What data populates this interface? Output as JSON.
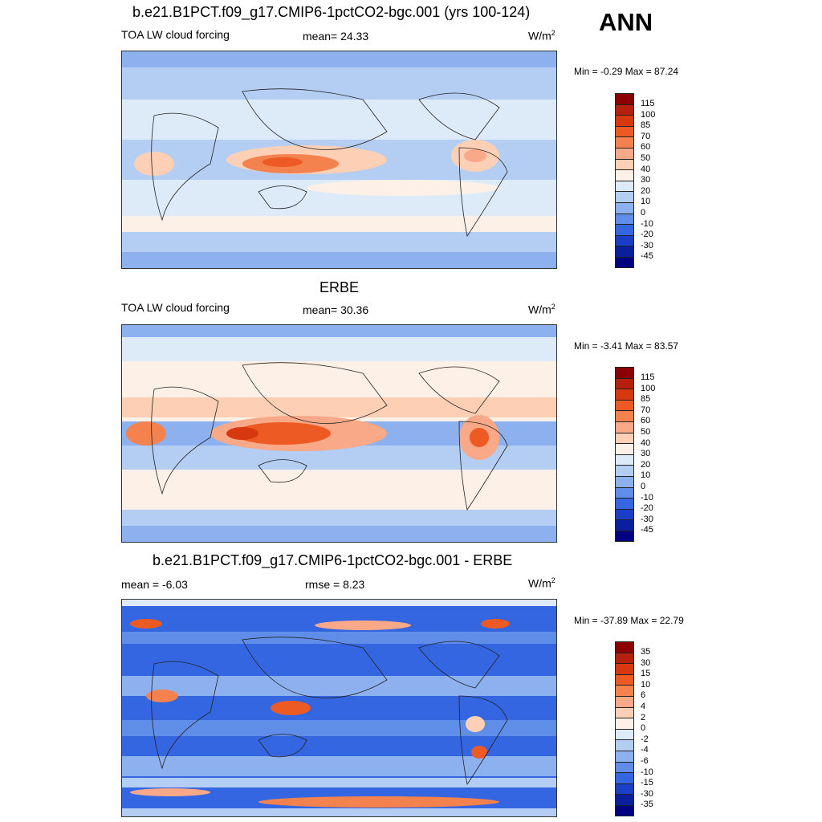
{
  "season": "ANN",
  "panels": [
    {
      "title": "b.e21.B1PCT.f09_g17.CMIP6-1pctCO2-bgc.001 (yrs 100-124)",
      "left_label": "TOA LW cloud forcing",
      "center_label": "mean=  24.33",
      "unit": "W/m",
      "unit_sup": "2",
      "minmax": "Min =  -0.29 Max =  87.24"
    },
    {
      "title": "ERBE",
      "left_label": "TOA LW cloud forcing",
      "center_label": "mean=  30.36",
      "unit": "W/m",
      "unit_sup": "2",
      "minmax": "Min =  -3.41 Max =  83.57"
    },
    {
      "title": "b.e21.B1PCT.f09_g17.CMIP6-1pctCO2-bgc.001 - ERBE",
      "left_label": "mean =  -6.03",
      "center_label": "rmse =   8.23",
      "unit": "W/m",
      "unit_sup": "2",
      "minmax": "Min = -37.89 Max =  22.79"
    }
  ],
  "colorbars": {
    "abs_levels": [
      "115",
      "100",
      "85",
      "70",
      "60",
      "50",
      "40",
      "30",
      "20",
      "10",
      "0",
      "-10",
      "-20",
      "-30",
      "-45"
    ],
    "diff_levels": [
      "35",
      "30",
      "15",
      "10",
      "6",
      "4",
      "2",
      "0",
      "-2",
      "-4",
      "-6",
      "-10",
      "-15",
      "-30",
      "-35"
    ],
    "colors": [
      "#8b0000",
      "#b5200d",
      "#d8380f",
      "#ee5a24",
      "#f4824f",
      "#f9a987",
      "#fdd0b6",
      "#fdf0e6",
      "#ddeaf8",
      "#b4cdf3",
      "#8db0ef",
      "#5f8de8",
      "#3366e0",
      "#1a3fc6",
      "#0a1f9c",
      "#000080"
    ]
  }
}
